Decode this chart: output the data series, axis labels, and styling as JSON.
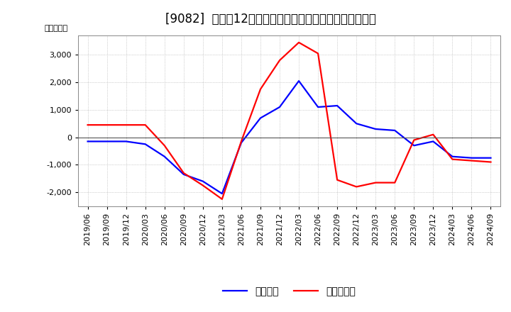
{
  "title": "[9082]  利益の12か月移動合計の対前年同期増減額の推移",
  "ylabel": "（百万円）",
  "background_color": "#ffffff",
  "plot_bg_color": "#ffffff",
  "grid_color": "#aaaaaa",
  "line1_label": "経常利益",
  "line1_color": "#0000ff",
  "line2_label": "当期純利益",
  "line2_color": "#ff0000",
  "dates": [
    "2019/06",
    "2019/09",
    "2019/12",
    "2020/03",
    "2020/06",
    "2020/09",
    "2020/12",
    "2021/03",
    "2021/06",
    "2021/09",
    "2021/12",
    "2022/03",
    "2022/06",
    "2022/09",
    "2022/12",
    "2023/03",
    "2023/06",
    "2023/09",
    "2023/12",
    "2024/03",
    "2024/06",
    "2024/09"
  ],
  "line1_values": [
    -150,
    -150,
    -150,
    -250,
    -700,
    -1350,
    -1600,
    -2050,
    -200,
    700,
    1100,
    2050,
    1100,
    1150,
    500,
    300,
    250,
    -300,
    -150,
    -700,
    -750,
    -750
  ],
  "line2_values": [
    450,
    450,
    450,
    450,
    -300,
    -1300,
    -1750,
    -2250,
    -150,
    1750,
    2800,
    3450,
    3050,
    -1550,
    -1800,
    -1650,
    -1650,
    -100,
    100,
    -800,
    -850,
    -900
  ],
  "ylim": [
    -2500,
    3700
  ],
  "yticks": [
    -2000,
    -1000,
    0,
    1000,
    2000,
    3000
  ],
  "title_fontsize": 12,
  "tick_fontsize": 8,
  "legend_fontsize": 10
}
